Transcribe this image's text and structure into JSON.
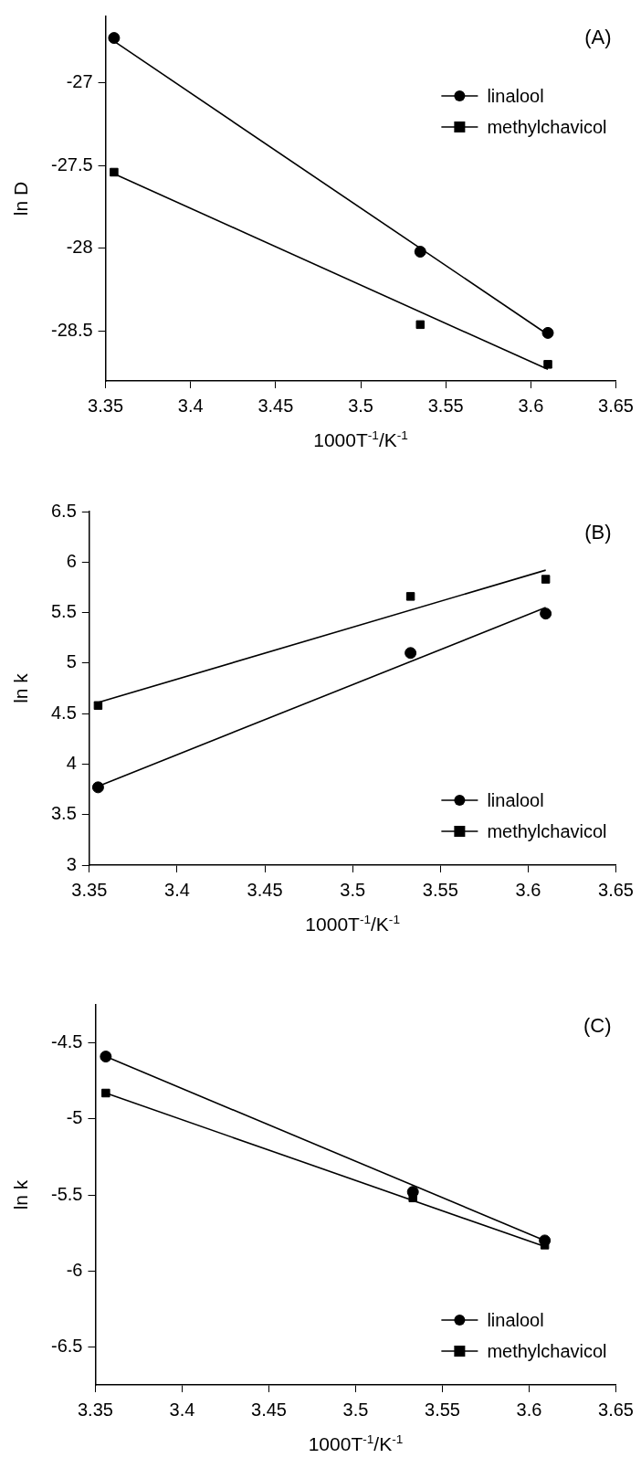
{
  "chart_data": [
    {
      "type": "scatter",
      "title": "(A)",
      "xlabel": "1000T$^{-1}$/K$^{-1}$",
      "ylabel": "ln D",
      "xlim": [
        3.35,
        3.65
      ],
      "xticks": [
        3.35,
        3.4,
        3.45,
        3.5,
        3.55,
        3.6,
        3.65
      ],
      "ylim": [
        -28.8,
        -26.6
      ],
      "yticks": [
        -28.5,
        -28,
        -27.5,
        -27
      ],
      "legend": "top right",
      "series": [
        {
          "name": "linalool",
          "color": "#000000",
          "marker": "circle",
          "x": [
            3.355,
            3.535,
            3.61
          ],
          "values": [
            -26.73,
            -28.02,
            -28.51
          ]
        },
        {
          "name": "methylchavicol",
          "color": "#000000",
          "marker": "square",
          "x": [
            3.355,
            3.535,
            3.61
          ],
          "values": [
            -27.54,
            -28.46,
            -28.7
          ]
        },
        {
          "type": "line",
          "color": "#000000",
          "x": [
            3.355,
            3.61
          ],
          "values": [
            -26.75,
            -28.52
          ]
        },
        {
          "type": "line",
          "color": "#000000",
          "x": [
            3.355,
            3.61
          ],
          "values": [
            -27.55,
            -28.73
          ]
        }
      ]
    },
    {
      "type": "scatter",
      "title": "(B)",
      "xlabel": "1000T$^{-1}$/K$^{-1}$",
      "ylabel": "ln k",
      "xlim": [
        3.35,
        3.65
      ],
      "xticks": [
        3.35,
        3.4,
        3.45,
        3.5,
        3.55,
        3.6,
        3.65
      ],
      "ylim": [
        3,
        6.5
      ],
      "yticks": [
        3,
        3.5,
        4,
        4.5,
        5,
        5.5,
        6,
        6.5
      ],
      "legend": "bottom right",
      "series": [
        {
          "name": "linalool",
          "color": "#000000",
          "marker": "circle",
          "x": [
            3.355,
            3.533,
            3.61
          ],
          "values": [
            3.77,
            5.1,
            5.49
          ]
        },
        {
          "name": "methylchavicol",
          "color": "#000000",
          "marker": "square",
          "x": [
            3.355,
            3.533,
            3.61
          ],
          "values": [
            4.58,
            5.66,
            5.83
          ]
        },
        {
          "type": "line",
          "color": "#000000",
          "x": [
            3.355,
            3.61
          ],
          "values": [
            3.78,
            5.55
          ]
        },
        {
          "type": "line",
          "color": "#000000",
          "x": [
            3.355,
            3.61
          ],
          "values": [
            4.61,
            5.92
          ]
        }
      ]
    },
    {
      "type": "scatter",
      "title": "(C)",
      "xlabel": "1000T$^{-1}$/K$^{-1}$",
      "ylabel": "ln k",
      "xlim": [
        3.35,
        3.65
      ],
      "xticks": [
        3.35,
        3.4,
        3.45,
        3.5,
        3.55,
        3.6,
        3.65
      ],
      "ylim": [
        -6.75,
        -4.25
      ],
      "yticks": [
        -6.5,
        -6,
        -5.5,
        -5,
        -4.5
      ],
      "legend": "bottom right",
      "series": [
        {
          "name": "linalool",
          "color": "#000000",
          "marker": "circle",
          "x": [
            3.356,
            3.533,
            3.609
          ],
          "values": [
            -4.59,
            -5.48,
            -5.8
          ]
        },
        {
          "name": "methylchavicol",
          "color": "#000000",
          "marker": "square",
          "x": [
            3.356,
            3.533,
            3.609
          ],
          "values": [
            -4.83,
            -5.52,
            -5.83
          ]
        },
        {
          "type": "line",
          "color": "#000000",
          "x": [
            3.356,
            3.609
          ],
          "values": [
            -4.59,
            -5.8
          ]
        },
        {
          "type": "line",
          "color": "#000000",
          "x": [
            3.356,
            3.609
          ],
          "values": [
            -4.83,
            -5.84
          ]
        }
      ]
    }
  ]
}
